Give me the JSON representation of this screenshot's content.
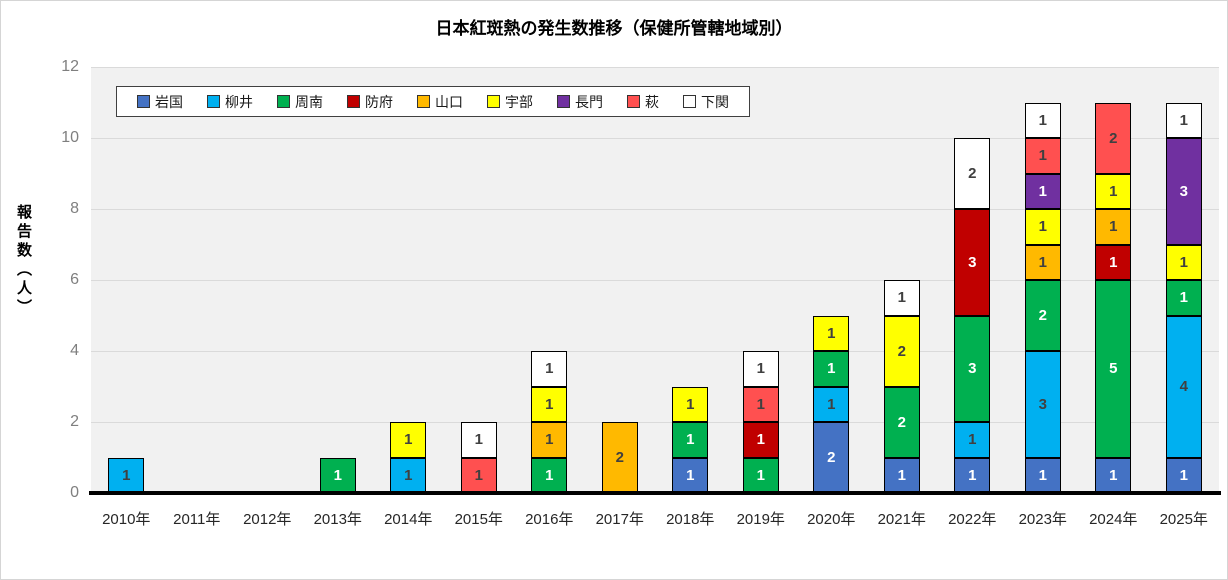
{
  "chart_data": {
    "type": "bar",
    "stacked": true,
    "title": "日本紅斑熱の発生数推移（保健所管轄地域別）",
    "ylabel": "報告数（人）",
    "xlabel": "",
    "ylim": [
      0,
      12
    ],
    "yticks": [
      0,
      2,
      4,
      6,
      8,
      10,
      12
    ],
    "grid": "horizontal",
    "legend_position": "top-inside",
    "categories": [
      "2010年",
      "2011年",
      "2012年",
      "2013年",
      "2014年",
      "2015年",
      "2016年",
      "2017年",
      "2018年",
      "2019年",
      "2020年",
      "2021年",
      "2022年",
      "2023年",
      "2024年",
      "2025年"
    ],
    "series": [
      {
        "name": "岩国",
        "color": "#4472C4",
        "label_color": "#FFFFFF",
        "values": [
          0,
          0,
          0,
          0,
          0,
          0,
          0,
          0,
          1,
          0,
          2,
          1,
          1,
          1,
          1,
          1
        ]
      },
      {
        "name": "柳井",
        "color": "#00B0F0",
        "label_color": "#404040",
        "values": [
          1,
          0,
          0,
          0,
          1,
          0,
          0,
          0,
          0,
          0,
          1,
          0,
          1,
          3,
          0,
          4
        ]
      },
      {
        "name": "周南",
        "color": "#00B050",
        "label_color": "#FFFFFF",
        "values": [
          0,
          0,
          0,
          1,
          0,
          0,
          1,
          0,
          1,
          1,
          1,
          2,
          3,
          2,
          5,
          1
        ]
      },
      {
        "name": "防府",
        "color": "#C00000",
        "label_color": "#FFFFFF",
        "values": [
          0,
          0,
          0,
          0,
          0,
          0,
          0,
          0,
          0,
          1,
          0,
          0,
          3,
          0,
          1,
          0
        ]
      },
      {
        "name": "山口",
        "color": "#FFB900",
        "label_color": "#404040",
        "values": [
          0,
          0,
          0,
          0,
          0,
          0,
          1,
          2,
          0,
          0,
          0,
          0,
          0,
          1,
          1,
          0
        ]
      },
      {
        "name": "宇部",
        "color": "#FFFF00",
        "label_color": "#404040",
        "values": [
          0,
          0,
          0,
          0,
          1,
          0,
          1,
          0,
          1,
          0,
          1,
          2,
          0,
          1,
          1,
          1
        ]
      },
      {
        "name": "長門",
        "color": "#7030A0",
        "label_color": "#FFFFFF",
        "values": [
          0,
          0,
          0,
          0,
          0,
          0,
          0,
          0,
          0,
          0,
          0,
          0,
          0,
          1,
          0,
          3
        ]
      },
      {
        "name": "萩",
        "color": "#FF5050",
        "label_color": "#404040",
        "values": [
          0,
          0,
          0,
          0,
          0,
          1,
          0,
          0,
          0,
          1,
          0,
          0,
          0,
          1,
          2,
          0
        ]
      },
      {
        "name": "下関",
        "color": "#FFFFFF",
        "label_color": "#404040",
        "values": [
          0,
          0,
          0,
          0,
          0,
          1,
          1,
          0,
          0,
          1,
          0,
          1,
          2,
          1,
          0,
          1
        ]
      }
    ],
    "colors": {
      "plot_background": "#F1F1F1",
      "gridline": "#DADADA",
      "axis_line": "#000000",
      "bar_border": "#000000",
      "ytick_text": "#7F7F7F",
      "xtick_text": "#262626"
    }
  }
}
